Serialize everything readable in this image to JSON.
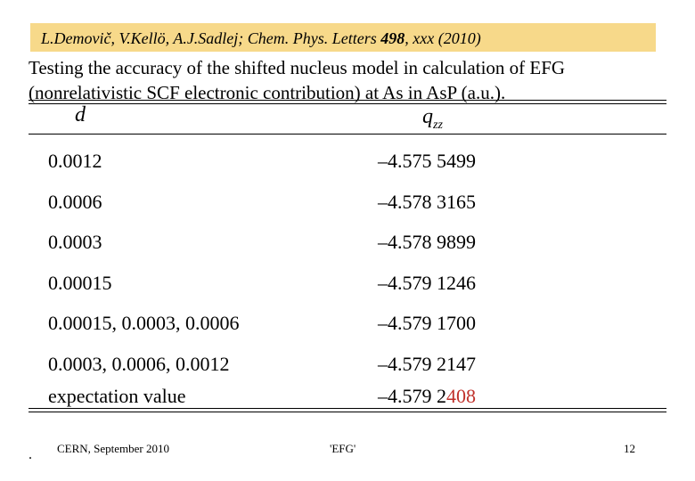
{
  "header": {
    "citation_pre": "L.Demovič, V.Kellö, A.J.Sadlej; Chem. Phys. Letters ",
    "citation_volume": "498",
    "citation_post": ", xxx (2010)",
    "citation_bg": "#f7d98a"
  },
  "title": "Testing the accuracy of the shifted nucleus model in calculation of EFG (nonrelativistic SCF electronic contribution) at As in AsP (a.u.).",
  "table": {
    "headers": {
      "d": "d",
      "q": "q",
      "q_sub": "zz"
    },
    "rows": [
      {
        "d": "0.0012",
        "q": "–4.575 5499"
      },
      {
        "d": "0.0006",
        "q": "–4.578 3165"
      },
      {
        "d": "0.0003",
        "q": "–4.578 9899"
      },
      {
        "d": "0.00015",
        "q": "–4.579 1246"
      },
      {
        "d": "0.00015, 0.0003, 0.0006",
        "q": "–4.579 1700"
      },
      {
        "d": "0.0003, 0.0006, 0.0012",
        "q": "–4.579 2147"
      }
    ],
    "last_row": {
      "d": "expectation value",
      "q_main": "–4.579 2",
      "q_highlight": "408"
    },
    "highlight_color": "#c0302a"
  },
  "footer": {
    "bullet": ".",
    "venue": "CERN, September 2010",
    "label": "'EFG'",
    "page": "12"
  }
}
